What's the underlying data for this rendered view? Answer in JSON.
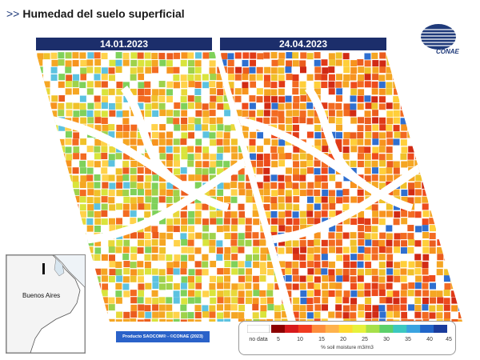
{
  "header": {
    "chevron": ">>",
    "title": "Humedad del suelo superficial"
  },
  "logo": {
    "text": "CONAE"
  },
  "panels": [
    {
      "date": "14.01.2023",
      "palette": [
        "#f5a623",
        "#f0c12a",
        "#e8d83a",
        "#f7931e",
        "#d9e43c",
        "#9fd24b",
        "#f36b21",
        "#ffd24a",
        "#f5a623",
        "#eb5d1e",
        "#5cc2e0",
        "#7fd15a"
      ]
    },
    {
      "date": "24.04.2023",
      "palette": [
        "#ee4b1c",
        "#f26a21",
        "#f5a623",
        "#e03a17",
        "#f7931e",
        "#ffcf3a",
        "#f36b21",
        "#d12a14",
        "#f5a623",
        "#2f6fd0",
        "#f0c12a",
        "#eb5d1e"
      ]
    }
  ],
  "inset": {
    "label": "Buenos Aires"
  },
  "credit": {
    "text": "Producto SAOCOM® - ©CONAE (2023)"
  },
  "legend": {
    "no_data": "no data",
    "ticks": [
      "5",
      "10",
      "15",
      "20",
      "25",
      "30",
      "35",
      "40",
      "45"
    ],
    "unit": "% soil moisture m3/m3",
    "colors": [
      "#8b0000",
      "#d7191c",
      "#f03b20",
      "#fd8d3c",
      "#feb24c",
      "#ffd92f",
      "#e6f13b",
      "#a6e04a",
      "#5cd06a",
      "#3cc8c0",
      "#3aa3e0",
      "#2166c9",
      "#1a3c9c"
    ]
  }
}
